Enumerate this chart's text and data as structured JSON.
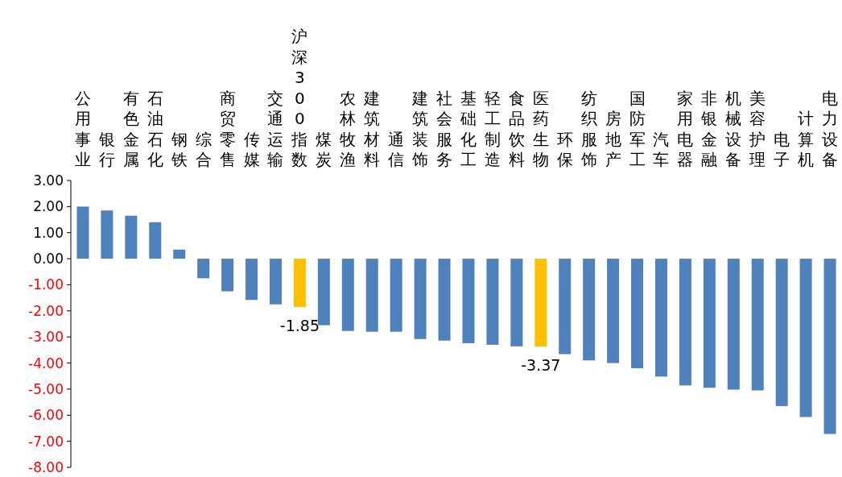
{
  "chart_data": {
    "type": "bar",
    "categories": [
      "公用事业",
      "银行",
      "有色金属",
      "石油石化",
      "钢铁",
      "综合",
      "商贸零售",
      "传媒",
      "交通运输",
      "沪深300指数",
      "煤炭",
      "农林牧渔",
      "建筑材料",
      "通信",
      "建筑装饰",
      "社会服务",
      "基础化工",
      "轻工制造",
      "食品饮料",
      "医药生物",
      "环保",
      "纺织服饰",
      "房地产",
      "国防军工",
      "汽车",
      "家用电器",
      "非银金融",
      "机械设备",
      "美容护理",
      "电子",
      "计算机",
      "电力设备"
    ],
    "values": [
      2.0,
      1.85,
      1.65,
      1.4,
      0.35,
      -0.75,
      -1.25,
      -1.58,
      -1.75,
      -1.85,
      -2.55,
      -2.77,
      -2.8,
      -2.8,
      -3.08,
      -3.14,
      -3.24,
      -3.3,
      -3.36,
      -3.37,
      -3.66,
      -3.9,
      -4.0,
      -4.2,
      -4.52,
      -4.86,
      -4.95,
      -5.02,
      -5.05,
      -5.65,
      -6.07,
      -6.72
    ],
    "colors": [
      "#4f81bd",
      "#4f81bd",
      "#4f81bd",
      "#4f81bd",
      "#4f81bd",
      "#4f81bd",
      "#4f81bd",
      "#4f81bd",
      "#4f81bd",
      "#ffc000",
      "#4f81bd",
      "#4f81bd",
      "#4f81bd",
      "#4f81bd",
      "#4f81bd",
      "#4f81bd",
      "#4f81bd",
      "#4f81bd",
      "#4f81bd",
      "#ffc000",
      "#4f81bd",
      "#4f81bd",
      "#4f81bd",
      "#4f81bd",
      "#4f81bd",
      "#4f81bd",
      "#4f81bd",
      "#4f81bd",
      "#4f81bd",
      "#4f81bd",
      "#4f81bd",
      "#4f81bd"
    ],
    "value_labels": [
      null,
      null,
      null,
      null,
      null,
      null,
      null,
      null,
      null,
      "-1.85",
      null,
      null,
      null,
      null,
      null,
      null,
      null,
      null,
      null,
      "-3.37",
      null,
      null,
      null,
      null,
      null,
      null,
      null,
      null,
      null,
      null,
      null,
      null
    ],
    "ylim": [
      -8,
      3
    ],
    "yticks": [
      {
        "value": 3,
        "label": "3.00"
      },
      {
        "value": 2,
        "label": "2.00"
      },
      {
        "value": 1,
        "label": "1.00"
      },
      {
        "value": 0,
        "label": "0.00"
      },
      {
        "value": -1,
        "label": "-1.00"
      },
      {
        "value": -2,
        "label": "-2.00"
      },
      {
        "value": -3,
        "label": "-3.00"
      },
      {
        "value": -4,
        "label": "-4.00"
      },
      {
        "value": -5,
        "label": "-5.00"
      },
      {
        "value": -6,
        "label": "-6.00"
      },
      {
        "value": -7,
        "label": "-7.00"
      },
      {
        "value": -8,
        "label": "-8.00"
      }
    ]
  }
}
